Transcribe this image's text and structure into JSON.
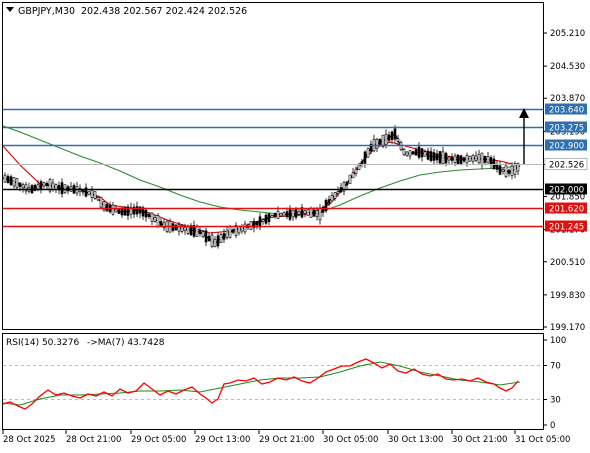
{
  "header": {
    "symbol_text": "GBPJPY,M30",
    "ohlc_text": "202.438 202.567 202.424 202.526"
  },
  "rsi_header": {
    "label": "RSI(14) 50.3276",
    "ma_label": "->MA(7) 43.7428"
  },
  "price_axis": {
    "ticks": [
      "205.210",
      "204.530",
      "203.870",
      "203.190",
      "202.510",
      "201.850",
      "201.170",
      "200.510",
      "199.830",
      "199.170"
    ],
    "tick_values": [
      205.21,
      204.53,
      203.87,
      203.19,
      202.51,
      201.85,
      201.17,
      200.51,
      199.83,
      199.17
    ]
  },
  "rsi_axis": {
    "ticks": [
      "100",
      "70",
      "30",
      "0"
    ],
    "tick_values": [
      100,
      70,
      30,
      0
    ]
  },
  "time_axis": {
    "labels": [
      "28 Oct 2025",
      "28 Oct 21:00",
      "29 Oct 05:00",
      "29 Oct 13:00",
      "29 Oct 21:00",
      "30 Oct 05:00",
      "30 Oct 13:00",
      "30 Oct 21:00",
      "31 Oct 05:00"
    ]
  },
  "levels": [
    {
      "label": "203.640",
      "value": 203.64,
      "kind": "resistance",
      "color": "#2e6fb0"
    },
    {
      "label": "203.275",
      "value": 203.275,
      "kind": "resistance",
      "color": "#2e6fb0"
    },
    {
      "label": "202.900",
      "value": 202.9,
      "kind": "resistance",
      "color": "#2e6fb0"
    },
    {
      "label": "202.000",
      "value": 202.0,
      "kind": "pivot",
      "color": "#000000"
    },
    {
      "label": "201.620",
      "value": 201.62,
      "kind": "support",
      "color": "#e01010"
    },
    {
      "label": "201.245",
      "value": 201.245,
      "kind": "support",
      "color": "#e01010"
    }
  ],
  "current_price": {
    "label": "202.526",
    "value": 202.526
  },
  "colors": {
    "candle": "#000000",
    "fast_ma": "#e00000",
    "slow_ma": "#2a8a2a",
    "rsi_line": "#ff0000",
    "rsi_ma": "#1a8a1a",
    "arrow": "#000000",
    "grid": "#c8c8c8"
  },
  "icons": {
    "menu": "triangle-down-icon"
  }
}
